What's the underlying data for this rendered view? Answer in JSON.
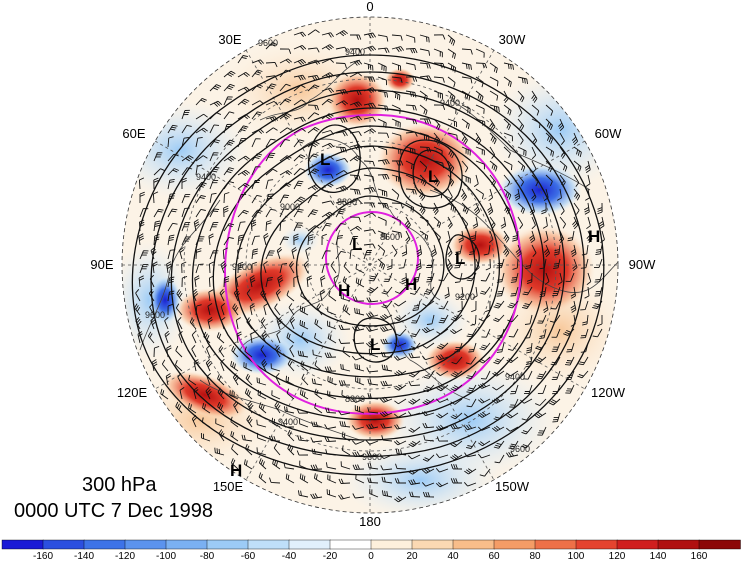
{
  "plot": {
    "level_label": "300 hPa",
    "time_label": "0000 UTC 7 Dec 1998"
  },
  "longitude_labels": [
    "0",
    "30W",
    "60W",
    "90W",
    "120W",
    "150W",
    "180",
    "150E",
    "120E",
    "90E",
    "60E",
    "30E"
  ],
  "contour_labels": [
    "9400",
    "9400",
    "9600",
    "8600",
    "8800",
    "9000",
    "9200",
    "9400",
    "9600",
    "9600",
    "9600",
    "9400",
    "9400",
    "8800",
    "9200"
  ],
  "pressure_centers": [
    {
      "label": "L"
    },
    {
      "label": "L"
    },
    {
      "label": "L"
    },
    {
      "label": "L"
    },
    {
      "label": "L"
    },
    {
      "label": "H"
    },
    {
      "label": "H"
    },
    {
      "label": "H"
    },
    {
      "label": "H"
    }
  ],
  "colorbar": {
    "ticks": [
      "-160",
      "-140",
      "-120",
      "-100",
      "-80",
      "-60",
      "-40",
      "-20",
      "0",
      "20",
      "40",
      "60",
      "80",
      "100",
      "120",
      "140",
      "160"
    ],
    "colors": [
      "#1a1ad6",
      "#2b4fe0",
      "#3d73e8",
      "#5b93ee",
      "#7ab0f2",
      "#9ccbf6",
      "#bfdff9",
      "#e1f0fc",
      "#ffffff",
      "#fdf0dc",
      "#fbd9b3",
      "#f8bd8a",
      "#f49c66",
      "#ee7048",
      "#e5432f",
      "#d01e1e",
      "#b01010",
      "#8c0808"
    ]
  },
  "colors": {
    "contour": "#111111",
    "jet_contour": "#e020e0",
    "positive": "#d62020",
    "negative": "#2040d8"
  }
}
